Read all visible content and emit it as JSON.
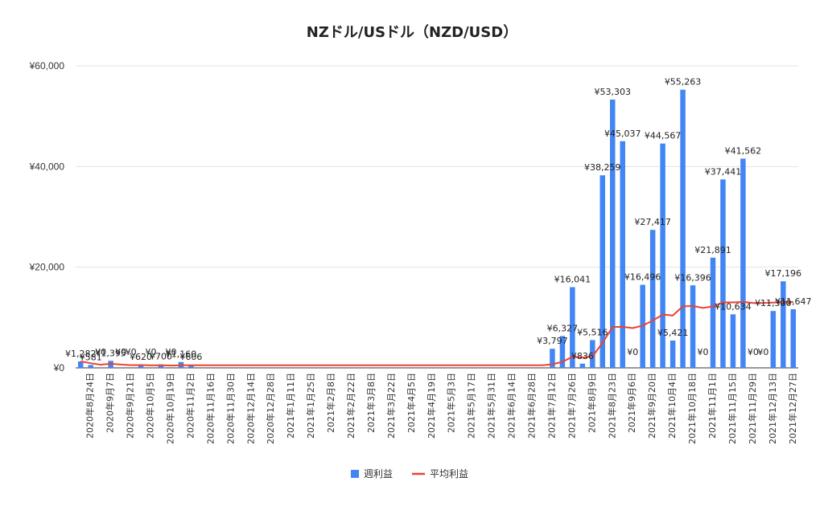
{
  "chart_data": {
    "type": "bar",
    "title": "NZドル/USドル（NZD/USD）",
    "ylim": [
      0,
      60000
    ],
    "yticks": [
      "¥0",
      "¥20,000",
      "¥40,000",
      "¥60,000"
    ],
    "ytick_values": [
      0,
      20000,
      40000,
      60000
    ],
    "grid": true,
    "legend_position": "bottom",
    "xtick_labels": [
      "2020年8月24日",
      "2020年9月7日",
      "2020年9月21日",
      "2020年10月5日",
      "2020年10月19日",
      "2020年11月2日",
      "2020年11月16日",
      "2020年11月30日",
      "2020年12月14日",
      "2020年12月28日",
      "2021年1月11日",
      "2021年1月25日",
      "2021年2月8日",
      "2021年2月22日",
      "2021年3月8日",
      "2021年3月22日",
      "2021年4月5日",
      "2021年4月19日",
      "2021年5月3日",
      "2021年5月17日",
      "2021年5月31日",
      "2021年6月14日",
      "2021年6月28日",
      "2021年7月12日",
      "2021年7月26日",
      "2021年8月9日",
      "2021年8月23日",
      "2021年9月6日",
      "2021年9月20日",
      "2021年10月4日",
      "2021年10月18日",
      "2021年11月1日",
      "2021年11月15日",
      "2021年11月29日",
      "2021年12月13日",
      "2021年12月27日"
    ],
    "series": [
      {
        "name": "週利益",
        "color": "#4285f4",
        "values": [
          1282,
          581,
          0,
          1395,
          0,
          0,
          620,
          0,
          700,
          0,
          1160,
          606,
          0,
          0,
          0,
          0,
          0,
          0,
          0,
          0,
          0,
          0,
          0,
          0,
          0,
          0,
          0,
          0,
          0,
          0,
          0,
          0,
          0,
          0,
          0,
          0,
          0,
          0,
          0,
          0,
          0,
          0,
          0,
          0,
          0,
          0,
          0,
          3797,
          6327,
          16041,
          836,
          5516,
          38259,
          53303,
          45037,
          0,
          16496,
          27417,
          44567,
          5421,
          55263,
          16396,
          0,
          21891,
          37441,
          10634,
          41562,
          0,
          0,
          11300,
          17196,
          11647
        ],
        "labels": [
          "¥1,282",
          "¥581",
          "¥0",
          "¥1,395",
          "¥0",
          "¥0",
          "¥620",
          "¥0",
          "¥700",
          "¥0",
          "¥1,160",
          "¥606",
          "",
          "",
          "",
          "",
          "",
          "",
          "",
          "",
          "",
          "",
          "",
          "",
          "",
          "",
          "",
          "",
          "",
          "",
          "",
          "",
          "",
          "",
          "",
          "",
          "",
          "",
          "",
          "",
          "",
          "",
          "",
          "",
          "",
          "",
          "",
          "¥3,797",
          "¥6,327",
          "¥16,041",
          "¥836",
          "¥5,516",
          "¥38,259",
          "¥53,303",
          "¥45,037",
          "¥0",
          "¥16,496",
          "¥27,417",
          "¥44,567",
          "¥5,421",
          "¥55,263",
          "¥16,396",
          "¥0",
          "¥21,891",
          "¥37,441",
          "¥10,634",
          "¥41,562",
          "¥0",
          "¥0",
          "¥11,300",
          "¥17,196",
          "¥11,647"
        ]
      },
      {
        "name": "平均利益",
        "color": "#ea4335",
        "type": "line",
        "values": [
          1282,
          932,
          621,
          817,
          654,
          545,
          557,
          487,
          511,
          460,
          522,
          528,
          528,
          528,
          528,
          528,
          528,
          528,
          528,
          528,
          528,
          528,
          528,
          528,
          528,
          528,
          528,
          528,
          528,
          528,
          528,
          528,
          528,
          528,
          528,
          528,
          528,
          528,
          528,
          528,
          528,
          528,
          528,
          528,
          528,
          528,
          528,
          700,
          1200,
          2200,
          2050,
          2250,
          5000,
          8100,
          8150,
          7900,
          8400,
          9400,
          10600,
          10400,
          12200,
          12300,
          11900,
          12200,
          13000,
          13000,
          13100,
          12900,
          12900,
          12950,
          13050,
          13100
        ]
      }
    ]
  }
}
